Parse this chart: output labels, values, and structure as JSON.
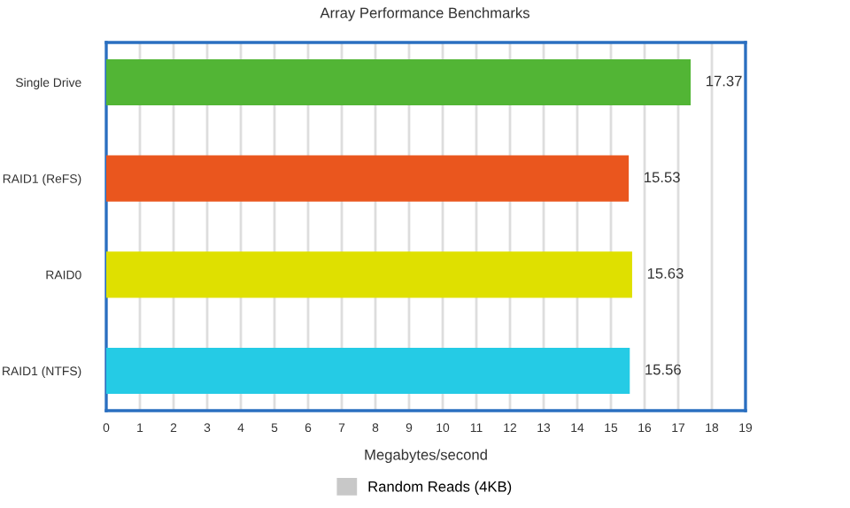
{
  "chart_data": {
    "type": "bar",
    "orientation": "horizontal",
    "title": "Array Performance Benchmarks",
    "xlabel": "Megabytes/second",
    "categories": [
      "Single Drive",
      "RAID1 (ReFS)",
      "RAID0",
      "RAID1 (NTFS)"
    ],
    "series": [
      {
        "name": "Random Reads (4KB)",
        "color": "#c8c8c8",
        "colors": [
          "#52b535",
          "#ea561e",
          "#dfe000",
          "#25cbe5"
        ],
        "values": [
          17.37,
          15.53,
          15.63,
          15.56
        ]
      }
    ],
    "xlim": [
      0,
      19
    ],
    "xticks": [
      0,
      1,
      2,
      3,
      4,
      5,
      6,
      7,
      8,
      9,
      10,
      11,
      12,
      13,
      14,
      15,
      16,
      17,
      18,
      19
    ],
    "grid": "x",
    "legend": "bottom",
    "data_labels": true
  }
}
